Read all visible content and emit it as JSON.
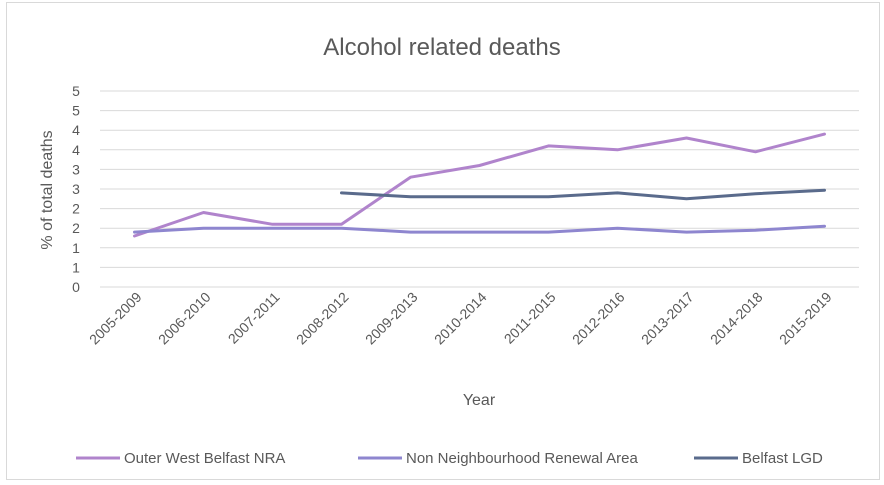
{
  "chart_data": {
    "type": "line",
    "title": "Alcohol related deaths",
    "xlabel": "Year",
    "ylabel": "% of total deaths",
    "categories": [
      "2005-2009",
      "2006-2010",
      "2007-2011",
      "2008-2012",
      "2009-2013",
      "2010-2014",
      "2011-2015",
      "2012-2016",
      "2013-2017",
      "2014-2018",
      "2015-2019"
    ],
    "yticks": [
      "0",
      "1",
      "1",
      "2",
      "2",
      "3",
      "3",
      "4",
      "4",
      "5",
      "5"
    ],
    "ylim": [
      0,
      5
    ],
    "grid": true,
    "legend_position": "bottom",
    "series": [
      {
        "name": "Outer West Belfast NRA",
        "color": "#b084cc",
        "values": [
          1.3,
          1.9,
          1.6,
          1.6,
          2.8,
          3.1,
          3.6,
          3.5,
          3.8,
          3.45,
          3.9
        ]
      },
      {
        "name": "Non Neighbourhood Renewal Area",
        "color": "#8e86cf",
        "values": [
          1.4,
          1.5,
          1.5,
          1.5,
          1.4,
          1.4,
          1.4,
          1.5,
          1.4,
          1.45,
          1.55
        ]
      },
      {
        "name": "Belfast LGD",
        "color": "#5a6b8c",
        "values": [
          null,
          null,
          null,
          2.4,
          2.3,
          2.3,
          2.3,
          2.4,
          2.25,
          2.38,
          2.47
        ]
      }
    ]
  }
}
